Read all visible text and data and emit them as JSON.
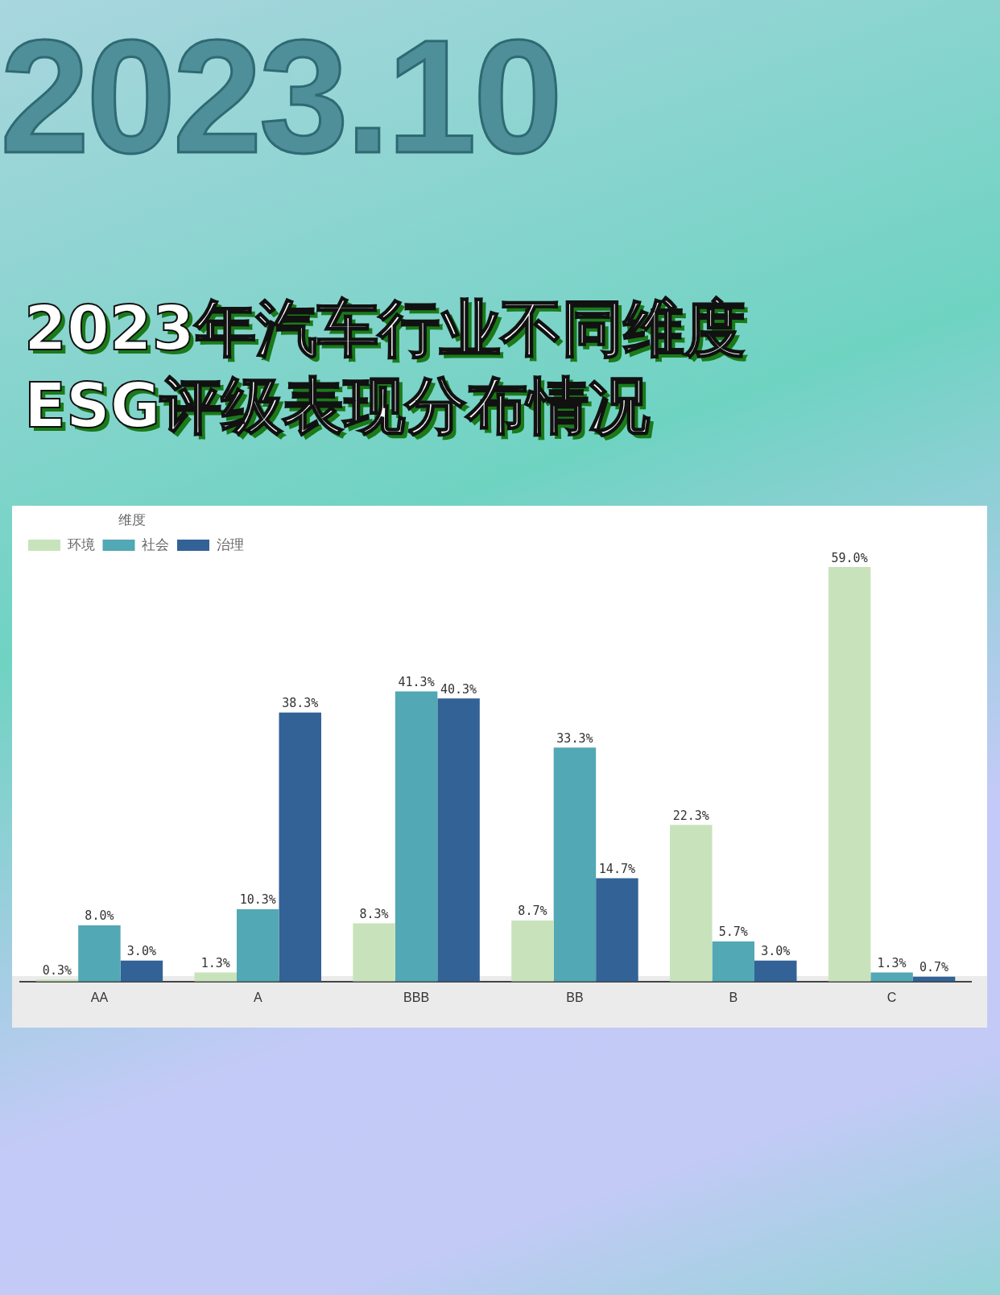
{
  "chart_data": {
    "type": "bar",
    "subtitle": "2023.10",
    "title": "2023年汽车行业不同维度\nESG评级表现分布情况",
    "legend_title": "维度",
    "legend": "top left",
    "tick_labels": "x",
    "grid": false,
    "categories": [
      "AA",
      "A",
      "BBB",
      "BB",
      "B",
      "C"
    ],
    "series": [
      {
        "name": "环境",
        "color": "#c8e3bb",
        "values": [
          0.3,
          1.3,
          8.3,
          8.7,
          22.3,
          59.0
        ],
        "value_labels": [
          "0.3%",
          "1.3%",
          "8.3%",
          "8.7%",
          "22.3%",
          "59.0%"
        ]
      },
      {
        "name": "社会",
        "color": "#52a8b4",
        "values": [
          8.0,
          10.3,
          41.3,
          33.3,
          5.7,
          1.3
        ],
        "value_labels": [
          "8.0%",
          "10.3%",
          "41.3%",
          "33.3%",
          "5.7%",
          "1.3%"
        ]
      },
      {
        "name": "治理",
        "color": "#336296",
        "values": [
          3.0,
          38.3,
          40.3,
          14.7,
          3.0,
          0.7
        ],
        "value_labels": [
          "3.0%",
          "38.3%",
          "40.3%",
          "14.7%",
          "3.0%",
          "0.7%"
        ]
      }
    ]
  }
}
